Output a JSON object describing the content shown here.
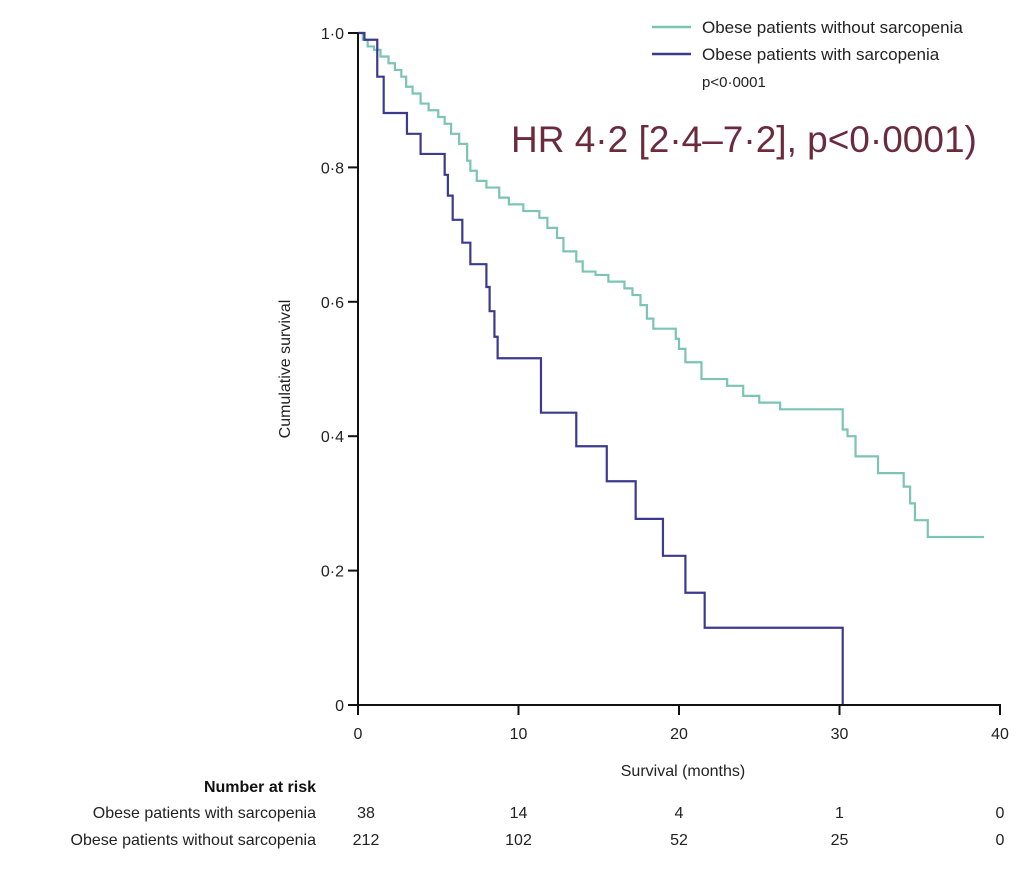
{
  "chart_data": {
    "type": "line",
    "subtype": "kaplan-meier step",
    "title": "",
    "xlabel": "Survival (months)",
    "ylabel": "Cumulative survival",
    "xlim": [
      0,
      40
    ],
    "ylim": [
      0,
      1
    ],
    "x_ticks": [
      0,
      10,
      20,
      30,
      40
    ],
    "x_tick_labels": [
      "0",
      "10",
      "20",
      "30",
      "40"
    ],
    "y_ticks": [
      0,
      0.2,
      0.4,
      0.6,
      0.8,
      1.0
    ],
    "y_tick_labels": [
      "0",
      "0·2",
      "0·4",
      "0·6",
      "0·8",
      "1·0"
    ],
    "grid": false,
    "legend_position": "top-right",
    "series": [
      {
        "name": "Obese patients without sarcopenia",
        "color": "#7cc4b4",
        "x": [
          0,
          0.3,
          0.6,
          1.0,
          1.4,
          1.9,
          2.3,
          2.7,
          3.0,
          3.4,
          3.9,
          4.4,
          5.0,
          5.4,
          5.8,
          6.3,
          6.8,
          7.0,
          7.4,
          8.0,
          8.8,
          9.4,
          10.3,
          11.3,
          11.8,
          12.4,
          12.8,
          13.6,
          14.0,
          14.8,
          15.6,
          16.6,
          17.1,
          17.6,
          18.0,
          18.4,
          19.8,
          20.0,
          20.4,
          21.4,
          23.0,
          24.0,
          25.0,
          26.3,
          30.2,
          30.5,
          31.0,
          32.4,
          34.0,
          34.4,
          34.7,
          35.5,
          39.0
        ],
        "y": [
          1.0,
          0.99,
          0.98,
          0.975,
          0.965,
          0.955,
          0.945,
          0.935,
          0.92,
          0.91,
          0.895,
          0.885,
          0.875,
          0.865,
          0.85,
          0.835,
          0.81,
          0.795,
          0.78,
          0.77,
          0.755,
          0.745,
          0.735,
          0.725,
          0.71,
          0.695,
          0.675,
          0.66,
          0.645,
          0.64,
          0.63,
          0.62,
          0.61,
          0.595,
          0.575,
          0.56,
          0.545,
          0.53,
          0.51,
          0.485,
          0.475,
          0.46,
          0.45,
          0.44,
          0.41,
          0.4,
          0.37,
          0.345,
          0.325,
          0.3,
          0.275,
          0.25,
          0.25
        ]
      },
      {
        "name": "Obese patients with sarcopenia",
        "color": "#3c3a8e",
        "x": [
          0,
          0.4,
          1.2,
          1.6,
          3.05,
          3.9,
          5.4,
          5.6,
          5.9,
          6.5,
          7.0,
          8.0,
          8.2,
          8.5,
          8.7,
          11.4,
          13.6,
          15.5,
          17.3,
          19.0,
          20.4,
          21.6,
          30.2
        ],
        "y": [
          1.0,
          0.99,
          0.935,
          0.881,
          0.85,
          0.82,
          0.789,
          0.758,
          0.722,
          0.688,
          0.656,
          0.622,
          0.586,
          0.548,
          0.516,
          0.435,
          0.385,
          0.333,
          0.277,
          0.222,
          0.167,
          0.115,
          0
        ]
      }
    ],
    "annotations": {
      "p_value": "p<0·0001",
      "hazard_ratio": "HR 4·2 [2·4–7·2], p<0·0001)",
      "hazard_ratio_color": "#6b2a3e"
    },
    "number_at_risk": {
      "title": "Number at risk",
      "times": [
        0,
        10,
        20,
        30,
        40
      ],
      "rows": [
        {
          "label": "Obese patients with sarcopenia",
          "values": [
            "38",
            "14",
            "4",
            "1",
            "0"
          ]
        },
        {
          "label": "Obese patients without sarcopenia",
          "values": [
            "212",
            "102",
            "52",
            "25",
            "0"
          ]
        }
      ]
    }
  }
}
